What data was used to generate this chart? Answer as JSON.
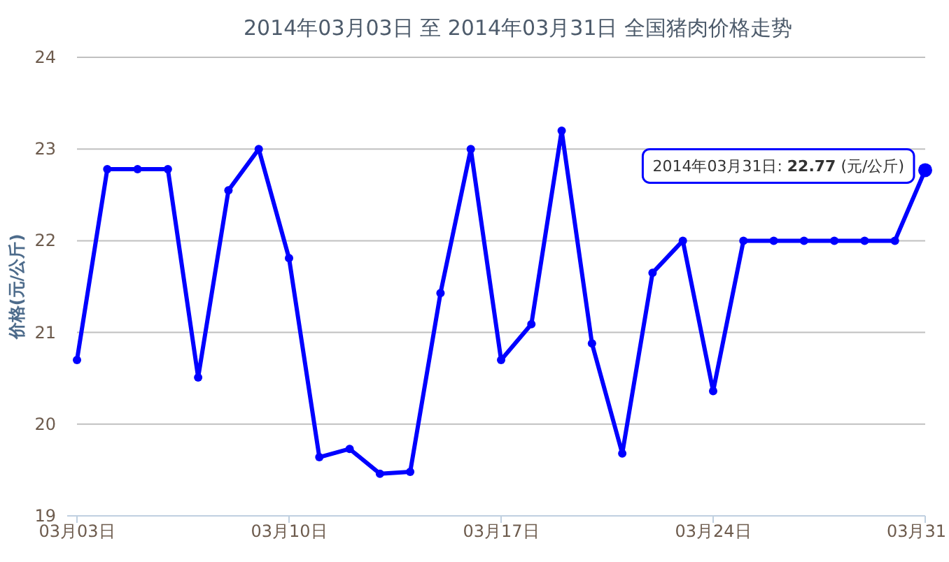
{
  "chart_data": {
    "type": "line",
    "title": "2014年03月03日 至 2014年03月31日 全国猪肉价格走势",
    "ylabel": "价格(元/公斤)",
    "x": [
      "--03-03",
      "--03-04",
      "--03-05",
      "--03-06",
      "--03-07",
      "--03-08",
      "--03-09",
      "--03-10",
      "--03-11",
      "--03-12",
      "--03-13",
      "--03-14",
      "--03-15",
      "--03-16",
      "--03-17",
      "--03-18",
      "--03-19",
      "--03-20",
      "--03-21",
      "--03-22",
      "--03-23",
      "--03-24",
      "--03-25",
      "--03-26",
      "--03-27",
      "--03-28",
      "--03-29",
      "--03-30",
      "--03-31"
    ],
    "series": [
      {
        "color": "#0000ff",
        "values": [
          20.7,
          22.78,
          22.78,
          22.78,
          20.51,
          22.55,
          23.0,
          21.81,
          19.64,
          19.73,
          19.46,
          19.48,
          21.43,
          23.0,
          20.7,
          21.09,
          23.2,
          20.88,
          19.68,
          21.65,
          22.0,
          20.36,
          22.0,
          22.0,
          22.0,
          22.0,
          22.0,
          22.0,
          22.77
        ]
      }
    ],
    "xlim": [
      "--03-03",
      "--03-31"
    ],
    "xticks": [
      {
        "value": "--03-03",
        "label": "03月03日"
      },
      {
        "value": "--03-10",
        "label": "03月10日"
      },
      {
        "value": "--03-17",
        "label": "03月17日"
      },
      {
        "value": "--03-24",
        "label": "03月24日"
      },
      {
        "value": "--03-31",
        "label": "03月31"
      }
    ],
    "ylim": [
      19,
      24
    ],
    "yticks": [
      19,
      20,
      21,
      22,
      23,
      24
    ],
    "annotations": [
      {
        "text": "2014年03月31日: **22.77** (元/公斤)",
        "x": "--03-31",
        "y": 22.77
      }
    ],
    "grid": "y",
    "marker": "circle",
    "line_style": "solid"
  }
}
